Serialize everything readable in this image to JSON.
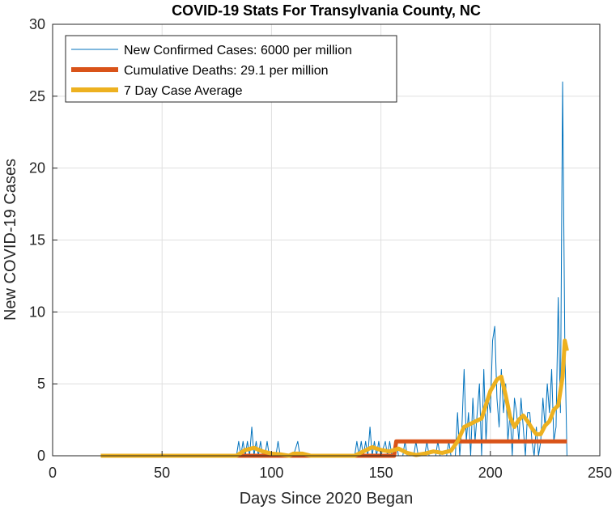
{
  "chart_data": {
    "type": "line",
    "title": "COVID-19 Stats For Transylvania County, NC",
    "xlabel": "Days Since 2020 Began",
    "ylabel": "New COVID-19 Cases",
    "xlim": [
      0,
      250
    ],
    "ylim": [
      0,
      30
    ],
    "x_ticks": [
      0,
      50,
      100,
      150,
      200,
      250
    ],
    "y_ticks": [
      0,
      5,
      10,
      15,
      20,
      25,
      30
    ],
    "x_tick_labels": [
      "0",
      "50",
      "100",
      "150",
      "200",
      "250"
    ],
    "y_tick_labels": [
      "0",
      "5",
      "10",
      "15",
      "20",
      "25",
      "30"
    ],
    "grid": true,
    "legend_position": "top-left",
    "series": [
      {
        "name": "New Confirmed Cases: 6000 per million",
        "color": "#0072BD",
        "style": "thin",
        "points": [
          [
            22,
            0
          ],
          [
            84,
            0
          ],
          [
            85,
            1
          ],
          [
            86,
            0
          ],
          [
            87,
            1
          ],
          [
            88,
            0
          ],
          [
            89,
            1
          ],
          [
            90,
            0
          ],
          [
            91,
            2
          ],
          [
            92,
            0
          ],
          [
            93,
            1
          ],
          [
            94,
            0
          ],
          [
            95,
            1
          ],
          [
            96,
            0
          ],
          [
            97,
            0
          ],
          [
            98,
            1
          ],
          [
            99,
            0
          ],
          [
            102,
            0
          ],
          [
            103,
            1
          ],
          [
            104,
            0
          ],
          [
            110,
            0
          ],
          [
            112,
            1
          ],
          [
            113,
            0
          ],
          [
            138,
            0
          ],
          [
            139,
            1
          ],
          [
            140,
            0
          ],
          [
            141,
            1
          ],
          [
            142,
            0
          ],
          [
            143,
            1
          ],
          [
            144,
            0
          ],
          [
            145,
            2
          ],
          [
            146,
            0
          ],
          [
            147,
            1
          ],
          [
            148,
            0
          ],
          [
            149,
            1
          ],
          [
            150,
            0
          ],
          [
            152,
            1
          ],
          [
            153,
            0
          ],
          [
            154,
            1
          ],
          [
            155,
            0
          ],
          [
            157,
            1
          ],
          [
            158,
            0
          ],
          [
            160,
            0
          ],
          [
            161,
            1
          ],
          [
            162,
            0
          ],
          [
            165,
            0
          ],
          [
            166,
            1
          ],
          [
            167,
            0
          ],
          [
            170,
            0
          ],
          [
            171,
            1
          ],
          [
            172,
            0
          ],
          [
            175,
            0
          ],
          [
            176,
            1
          ],
          [
            177,
            0
          ],
          [
            180,
            0
          ],
          [
            181,
            1
          ],
          [
            182,
            0
          ],
          [
            184,
            0
          ],
          [
            185,
            3
          ],
          [
            186,
            0
          ],
          [
            187,
            2
          ],
          [
            188,
            6
          ],
          [
            189,
            1
          ],
          [
            190,
            3
          ],
          [
            191,
            0
          ],
          [
            192,
            4
          ],
          [
            193,
            1
          ],
          [
            194,
            3
          ],
          [
            195,
            5
          ],
          [
            196,
            0
          ],
          [
            197,
            6
          ],
          [
            198,
            1
          ],
          [
            199,
            4
          ],
          [
            200,
            3
          ],
          [
            201,
            8
          ],
          [
            202,
            9
          ],
          [
            203,
            4
          ],
          [
            204,
            2
          ],
          [
            205,
            6
          ],
          [
            206,
            3
          ],
          [
            207,
            5
          ],
          [
            208,
            1
          ],
          [
            209,
            3
          ],
          [
            210,
            0
          ],
          [
            211,
            4
          ],
          [
            212,
            3
          ],
          [
            213,
            1
          ],
          [
            214,
            4
          ],
          [
            215,
            2
          ],
          [
            216,
            0
          ],
          [
            217,
            3
          ],
          [
            218,
            3
          ],
          [
            219,
            1
          ],
          [
            220,
            0
          ],
          [
            221,
            2
          ],
          [
            222,
            0
          ],
          [
            223,
            1
          ],
          [
            224,
            4
          ],
          [
            225,
            2
          ],
          [
            226,
            5
          ],
          [
            227,
            3
          ],
          [
            228,
            6
          ],
          [
            229,
            1
          ],
          [
            230,
            2
          ],
          [
            231,
            11
          ],
          [
            232,
            3
          ],
          [
            233,
            26
          ],
          [
            234,
            8
          ],
          [
            235,
            0
          ]
        ]
      },
      {
        "name": "Cumulative Deaths: 29.1 per million",
        "color": "#D95319",
        "style": "thick",
        "points": [
          [
            22,
            0
          ],
          [
            156,
            0
          ],
          [
            157,
            1
          ],
          [
            235,
            1
          ]
        ]
      },
      {
        "name": "7 Day Case Average",
        "color": "#EDB120",
        "style": "thick",
        "points": [
          [
            22,
            0
          ],
          [
            84,
            0
          ],
          [
            88,
            0.4
          ],
          [
            92,
            0.55
          ],
          [
            96,
            0.3
          ],
          [
            100,
            0.15
          ],
          [
            104,
            0.1
          ],
          [
            108,
            0
          ],
          [
            110,
            0.15
          ],
          [
            114,
            0.15
          ],
          [
            118,
            0
          ],
          [
            138,
            0
          ],
          [
            142,
            0.3
          ],
          [
            146,
            0.6
          ],
          [
            150,
            0.4
          ],
          [
            154,
            0.3
          ],
          [
            158,
            0.5
          ],
          [
            162,
            0.2
          ],
          [
            166,
            0.05
          ],
          [
            170,
            0.15
          ],
          [
            174,
            0.3
          ],
          [
            178,
            0.2
          ],
          [
            182,
            0.35
          ],
          [
            185,
            1.0
          ],
          [
            188,
            2.0
          ],
          [
            192,
            2.3
          ],
          [
            196,
            2.6
          ],
          [
            200,
            4.5
          ],
          [
            203,
            5.3
          ],
          [
            205,
            5.5
          ],
          [
            207,
            4.2
          ],
          [
            209,
            2.7
          ],
          [
            211,
            2.0
          ],
          [
            213,
            2.5
          ],
          [
            215,
            2.8
          ],
          [
            217,
            2.4
          ],
          [
            219,
            1.9
          ],
          [
            221,
            1.5
          ],
          [
            223,
            1.5
          ],
          [
            225,
            2.1
          ],
          [
            227,
            2.4
          ],
          [
            229,
            3.2
          ],
          [
            231,
            3.5
          ],
          [
            233,
            5.5
          ],
          [
            234,
            8
          ],
          [
            235,
            7.3
          ]
        ]
      }
    ]
  }
}
